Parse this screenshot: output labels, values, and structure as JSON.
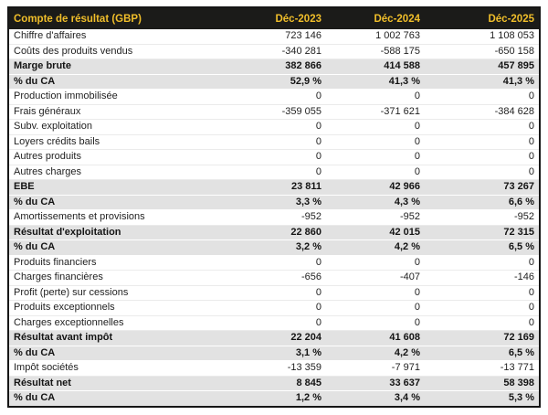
{
  "table": {
    "title": "Compte de résultat (GBP)",
    "columns": [
      "Déc-2023",
      "Déc-2024",
      "Déc-2025"
    ],
    "rows": [
      {
        "label": "Chiffre d'affaires",
        "values": [
          "723 146",
          "1 002 763",
          "1 108 053"
        ],
        "style": "normal"
      },
      {
        "label": "Coûts des produits vendus",
        "values": [
          "-340 281",
          "-588 175",
          "-650 158"
        ],
        "style": "normal"
      },
      {
        "label": "Marge brute",
        "values": [
          "382 866",
          "414 588",
          "457 895"
        ],
        "style": "subtotal"
      },
      {
        "label": "% du CA",
        "values": [
          "52,9 %",
          "41,3 %",
          "41,3 %"
        ],
        "style": "subtotal"
      },
      {
        "label": "Production immobilisée",
        "values": [
          "0",
          "0",
          "0"
        ],
        "style": "normal"
      },
      {
        "label": "Frais généraux",
        "values": [
          "-359 055",
          "-371 621",
          "-384 628"
        ],
        "style": "normal"
      },
      {
        "label": "Subv. exploitation",
        "values": [
          "0",
          "0",
          "0"
        ],
        "style": "normal"
      },
      {
        "label": "Loyers crédits bails",
        "values": [
          "0",
          "0",
          "0"
        ],
        "style": "normal"
      },
      {
        "label": "Autres produits",
        "values": [
          "0",
          "0",
          "0"
        ],
        "style": "normal"
      },
      {
        "label": "Autres charges",
        "values": [
          "0",
          "0",
          "0"
        ],
        "style": "normal"
      },
      {
        "label": "EBE",
        "values": [
          "23 811",
          "42 966",
          "73 267"
        ],
        "style": "subtotal"
      },
      {
        "label": "% du CA",
        "values": [
          "3,3 %",
          "4,3 %",
          "6,6 %"
        ],
        "style": "subtotal"
      },
      {
        "label": "Amortissements et provisions",
        "values": [
          "-952",
          "-952",
          "-952"
        ],
        "style": "normal"
      },
      {
        "label": "Résultat d'exploitation",
        "values": [
          "22 860",
          "42 015",
          "72 315"
        ],
        "style": "subtotal"
      },
      {
        "label": "% du CA",
        "values": [
          "3,2 %",
          "4,2 %",
          "6,5 %"
        ],
        "style": "subtotal"
      },
      {
        "label": "Produits financiers",
        "values": [
          "0",
          "0",
          "0"
        ],
        "style": "normal"
      },
      {
        "label": "Charges financières",
        "values": [
          "-656",
          "-407",
          "-146"
        ],
        "style": "normal"
      },
      {
        "label": "Profit (perte) sur cessions",
        "values": [
          "0",
          "0",
          "0"
        ],
        "style": "normal"
      },
      {
        "label": "Produits exceptionnels",
        "values": [
          "0",
          "0",
          "0"
        ],
        "style": "normal"
      },
      {
        "label": "Charges exceptionnelles",
        "values": [
          "0",
          "0",
          "0"
        ],
        "style": "normal"
      },
      {
        "label": "Résultat avant impôt",
        "values": [
          "22 204",
          "41 608",
          "72 169"
        ],
        "style": "subtotal"
      },
      {
        "label": "% du CA",
        "values": [
          "3,1 %",
          "4,2 %",
          "6,5 %"
        ],
        "style": "subtotal"
      },
      {
        "label": "Impôt sociétés",
        "values": [
          "-13 359",
          "-7 971",
          "-13 771"
        ],
        "style": "normal"
      },
      {
        "label": "Résultat net",
        "values": [
          "8 845",
          "33 637",
          "58 398"
        ],
        "style": "subtotal"
      },
      {
        "label": "% du CA",
        "values": [
          "1,2 %",
          "3,4 %",
          "5,3 %"
        ],
        "style": "subtotal"
      }
    ],
    "colors": {
      "header_bg": "#1b1b19",
      "header_text": "#f0be2a",
      "subtotal_bg": "#e2e2e2",
      "outer_border": "#161616",
      "row_divider": "#ebebeb",
      "body_text": "#1f1f1f"
    }
  }
}
